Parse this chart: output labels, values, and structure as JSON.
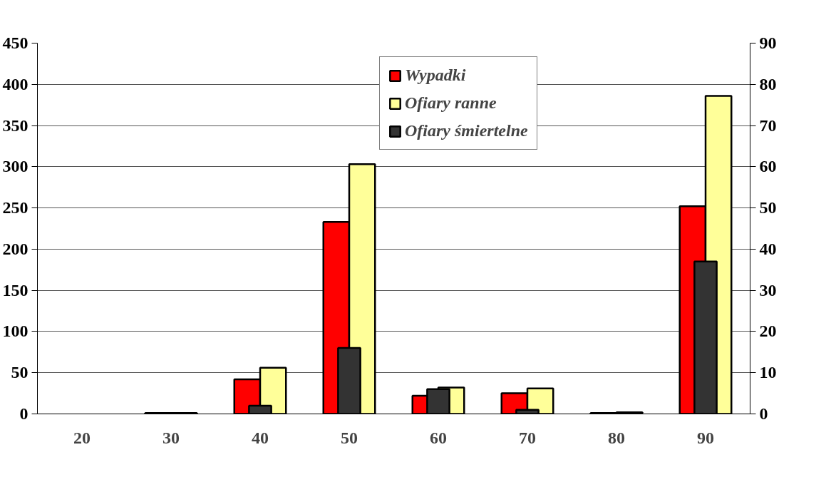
{
  "chart_data": {
    "type": "bar",
    "categories": [
      "20",
      "30",
      "40",
      "50",
      "60",
      "70",
      "80",
      "90"
    ],
    "series": [
      {
        "name": "Wypadki",
        "color": "#ff0000",
        "values": [
          0,
          1,
          42,
          233,
          22,
          25,
          1,
          252
        ]
      },
      {
        "name": "Ofiary ranne",
        "color": "#ffff99",
        "values": [
          0,
          1,
          56,
          303,
          32,
          31,
          2,
          386
        ]
      },
      {
        "name": "Ofiary śmiertelne",
        "color": "#333333",
        "axis": "y2",
        "values": [
          0,
          0,
          2,
          16,
          6,
          1,
          0,
          37
        ]
      }
    ],
    "ylim": [
      0,
      450
    ],
    "yticks": [
      0,
      50,
      100,
      150,
      200,
      250,
      300,
      350,
      400,
      450
    ],
    "y2lim": [
      0,
      90
    ],
    "y2ticks": [
      0,
      10,
      20,
      30,
      40,
      50,
      60,
      70,
      80,
      90
    ],
    "grid": "y",
    "legend": "top right"
  }
}
